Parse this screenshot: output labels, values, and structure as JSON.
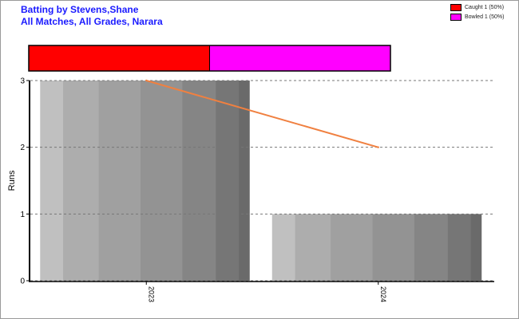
{
  "title_line1": "Batting by Stevens,Shane",
  "title_line2": "All Matches, All Grades, Narara",
  "legend": [
    {
      "label": "Caught 1 (50%)",
      "color": "#ff0000"
    },
    {
      "label": "Bowled 1 (50%)",
      "color": "#ff00ff"
    }
  ],
  "dismissal_bar": [
    {
      "name": "Caught",
      "fraction": 0.5,
      "color": "#ff0000"
    },
    {
      "name": "Bowled",
      "fraction": 0.5,
      "color": "#ff00ff"
    }
  ],
  "chart_data": {
    "type": "bar",
    "categories": [
      "2023",
      "2024"
    ],
    "series": [
      {
        "type": "bar",
        "values": [
          3,
          1
        ],
        "color": "#a0a0a0"
      },
      {
        "type": "line",
        "values": [
          3,
          2
        ],
        "color": "#f08040"
      }
    ],
    "xlabel": "",
    "ylabel": "Runs",
    "ylim": [
      0,
      3
    ],
    "yticks": [
      0,
      1,
      2,
      3
    ],
    "grid": true
  }
}
